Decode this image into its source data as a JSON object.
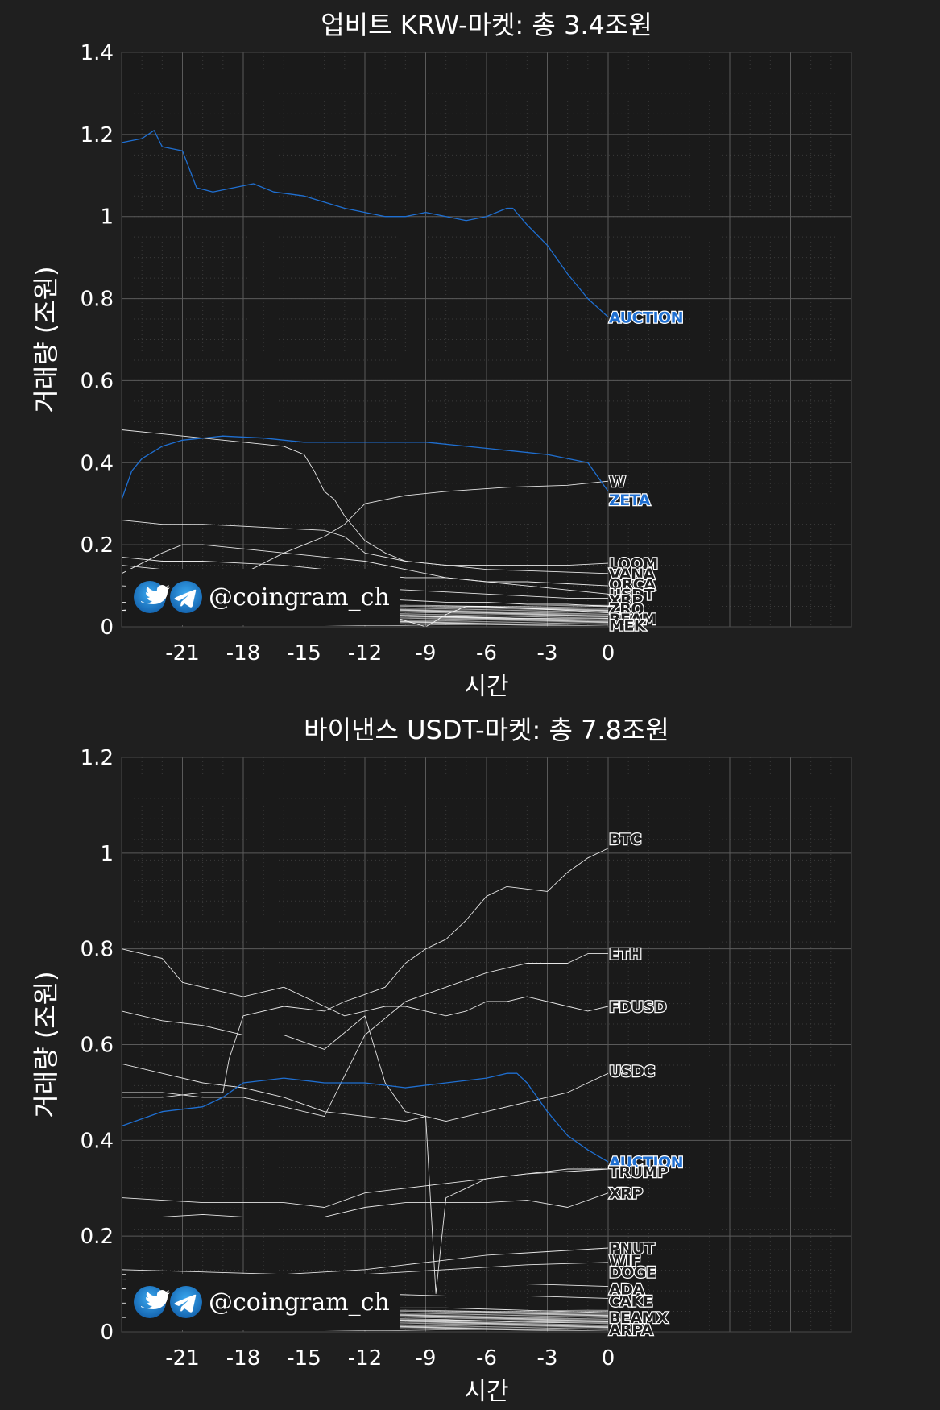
{
  "watermark": {
    "handle": "@coingram_ch",
    "icons": [
      "twitter-icon",
      "telegram-icon"
    ]
  },
  "colors": {
    "background": "#1f1f1f",
    "plot_bg": "#1a1a1a",
    "highlight": "#1f6fd1",
    "line": "#e6e6e6",
    "grid": "#5a5a5a"
  },
  "chart_data": [
    {
      "type": "line",
      "title": "업비트 KRW-마켓: 총 3.4조원",
      "xlabel": "시간",
      "ylabel": "거래량 (조원)",
      "xlim": [
        -24,
        12
      ],
      "ylim": [
        0,
        1.4
      ],
      "xticks": [
        -21,
        -18,
        -15,
        -12,
        -9,
        -6,
        -3,
        0
      ],
      "xtick_labels": [
        "-21",
        "-18",
        "-15",
        "-12",
        "-9",
        "-6",
        "-3",
        "0"
      ],
      "yticks": [
        0,
        0.2,
        0.4,
        0.6,
        0.8,
        1,
        1.2,
        1.4
      ],
      "ytick_labels": [
        "0",
        "0.2",
        "0.4",
        "0.6",
        "0.8",
        "1",
        "1.2",
        "1.4"
      ],
      "grid": true,
      "series": [
        {
          "name": "AUCTION",
          "highlight": true,
          "x": [
            -24,
            -23,
            -22.4,
            -22,
            -21,
            -20.3,
            -19.5,
            -18.5,
            -17.5,
            -16.5,
            -15,
            -13,
            -11,
            -10,
            -9,
            -8,
            -7,
            -6,
            -5,
            -4.7,
            -4,
            -3,
            -2,
            -1,
            0
          ],
          "y": [
            1.18,
            1.19,
            1.21,
            1.17,
            1.16,
            1.07,
            1.06,
            1.07,
            1.08,
            1.06,
            1.05,
            1.02,
            1.0,
            1.0,
            1.01,
            1.0,
            0.99,
            1.0,
            1.02,
            1.02,
            0.98,
            0.93,
            0.86,
            0.8,
            0.755
          ]
        },
        {
          "name": "W",
          "x": [
            -24,
            -20,
            -18,
            -16,
            -14,
            -13,
            -12,
            -11,
            -10,
            -8,
            -5,
            -2,
            0
          ],
          "y": [
            0.04,
            0.06,
            0.13,
            0.18,
            0.22,
            0.25,
            0.3,
            0.31,
            0.32,
            0.33,
            0.34,
            0.345,
            0.355
          ]
        },
        {
          "name": "ZETA",
          "highlight": true,
          "x": [
            -24,
            -23.5,
            -23,
            -22,
            -21,
            -19,
            -17,
            -15,
            -13,
            -11,
            -9,
            -7,
            -5,
            -3,
            -1,
            0
          ],
          "y": [
            0.31,
            0.38,
            0.41,
            0.44,
            0.455,
            0.465,
            0.46,
            0.45,
            0.45,
            0.45,
            0.45,
            0.44,
            0.43,
            0.42,
            0.4,
            0.33
          ]
        },
        {
          "name": "LOOM",
          "x": [
            -24,
            -22,
            -20,
            -18,
            -16,
            -15,
            -14.5,
            -14,
            -13.5,
            -13,
            -12,
            -11,
            -10,
            -8,
            -6,
            -4,
            -2,
            0
          ],
          "y": [
            0.48,
            0.47,
            0.46,
            0.45,
            0.44,
            0.42,
            0.38,
            0.33,
            0.31,
            0.27,
            0.21,
            0.18,
            0.16,
            0.15,
            0.15,
            0.15,
            0.15,
            0.155
          ]
        },
        {
          "name": "VANA",
          "x": [
            -24,
            -22,
            -20,
            -18,
            -16,
            -14,
            -13,
            -12,
            -10,
            -8,
            -6,
            -3,
            0
          ],
          "y": [
            0.26,
            0.25,
            0.25,
            0.245,
            0.24,
            0.235,
            0.22,
            0.18,
            0.16,
            0.15,
            0.14,
            0.135,
            0.13
          ]
        },
        {
          "name": "ORCA",
          "x": [
            -24,
            -22,
            -20,
            -18,
            -16,
            -14,
            -12,
            -10,
            -8,
            -6,
            -4,
            -2,
            0
          ],
          "y": [
            0.17,
            0.16,
            0.16,
            0.155,
            0.15,
            0.14,
            0.13,
            0.12,
            0.12,
            0.11,
            0.11,
            0.105,
            0.1
          ]
        },
        {
          "name": "USDT",
          "x": [
            -24,
            -22,
            -21,
            -20,
            -18,
            -16,
            -14,
            -12,
            -10,
            -8,
            -6,
            -4,
            -2,
            0
          ],
          "y": [
            0.13,
            0.18,
            0.2,
            0.2,
            0.19,
            0.18,
            0.17,
            0.16,
            0.14,
            0.12,
            0.11,
            0.1,
            0.09,
            0.08
          ]
        },
        {
          "name": "XRP",
          "x": [
            -24,
            -22,
            -20,
            -18,
            -16,
            -14,
            -12,
            -10,
            -8,
            -6,
            -4,
            -2,
            0
          ],
          "y": [
            0.15,
            0.14,
            0.13,
            0.12,
            0.11,
            0.1,
            0.095,
            0.09,
            0.085,
            0.08,
            0.075,
            0.07,
            0.07
          ]
        },
        {
          "name": "ZRO",
          "x": [
            -24,
            -22,
            -20,
            -18,
            -16,
            -14,
            -12,
            -10,
            -8,
            -6,
            -4,
            -2,
            0
          ],
          "y": [
            0.1,
            0.095,
            0.09,
            0.085,
            0.08,
            0.075,
            0.07,
            0.065,
            0.06,
            0.06,
            0.055,
            0.055,
            0.05
          ]
        },
        {
          "name": "BEAM",
          "x": [
            -24,
            -20,
            -16,
            -12,
            -9,
            -8,
            -7,
            -6,
            -4,
            -2,
            0
          ],
          "y": [
            0.06,
            0.055,
            0.05,
            0.045,
            0.0,
            0.03,
            0.05,
            0.05,
            0.045,
            0.04,
            0.035
          ]
        },
        {
          "name": "MEK",
          "x": [
            -24,
            -20,
            -16,
            -12,
            -8,
            -4,
            0
          ],
          "y": [
            0.04,
            0.035,
            0.03,
            0.03,
            0.025,
            0.02,
            0.02
          ]
        }
      ],
      "labels": [
        {
          "text": "AUCTION",
          "y": 0.755,
          "highlight": true
        },
        {
          "text": "W",
          "y": 0.355
        },
        {
          "text": "ZETA",
          "y": 0.31,
          "highlight": true
        },
        {
          "text": "LOOM",
          "y": 0.155
        },
        {
          "text": "VANA",
          "y": 0.13
        },
        {
          "text": "ORCA",
          "y": 0.105
        },
        {
          "text": "USDT",
          "y": 0.08
        },
        {
          "text": "XRP",
          "y": 0.065
        },
        {
          "text": "ZRO",
          "y": 0.045
        },
        {
          "text": "BEAM",
          "y": 0.02
        },
        {
          "text": "MEK",
          "y": 0.005
        }
      ]
    },
    {
      "type": "line",
      "title": "바이낸스 USDT-마켓: 총 7.8조원",
      "xlabel": "시간",
      "ylabel": "거래량 (조원)",
      "xlim": [
        -24,
        12
      ],
      "ylim": [
        0,
        1.2
      ],
      "xticks": [
        -21,
        -18,
        -15,
        -12,
        -9,
        -6,
        -3,
        0
      ],
      "xtick_labels": [
        "-21",
        "-18",
        "-15",
        "-12",
        "-9",
        "-6",
        "-3",
        "0"
      ],
      "yticks": [
        0,
        0.2,
        0.4,
        0.6,
        0.8,
        1,
        1.2
      ],
      "ytick_labels": [
        "0",
        "0.2",
        "0.4",
        "0.6",
        "0.8",
        "1",
        "1.2"
      ],
      "grid": true,
      "series": [
        {
          "name": "BTC",
          "x": [
            -24,
            -22,
            -20,
            -19,
            -18.7,
            -18,
            -16,
            -14,
            -13,
            -12.3,
            -11,
            -10,
            -9,
            -8,
            -7,
            -6,
            -5,
            -3,
            -2,
            -1,
            0
          ],
          "y": [
            0.49,
            0.49,
            0.5,
            0.5,
            0.57,
            0.66,
            0.68,
            0.67,
            0.69,
            0.7,
            0.72,
            0.77,
            0.8,
            0.82,
            0.86,
            0.91,
            0.93,
            0.92,
            0.96,
            0.99,
            1.01
          ]
        },
        {
          "name": "ETH",
          "x": [
            -24,
            -22,
            -20,
            -18,
            -16,
            -14,
            -12,
            -10,
            -8,
            -6,
            -4,
            -2,
            -1,
            0
          ],
          "y": [
            0.5,
            0.5,
            0.49,
            0.49,
            0.47,
            0.45,
            0.62,
            0.69,
            0.72,
            0.75,
            0.77,
            0.77,
            0.79,
            0.79
          ]
        },
        {
          "name": "FDUSD",
          "x": [
            -24,
            -23,
            -22,
            -21,
            -20,
            -19,
            -18,
            -17,
            -16,
            -15,
            -14,
            -13,
            -12,
            -11,
            -10,
            -9,
            -8,
            -7,
            -6,
            -5,
            -4,
            -3,
            -2,
            -1,
            0
          ],
          "y": [
            0.8,
            0.79,
            0.78,
            0.73,
            0.72,
            0.71,
            0.7,
            0.71,
            0.72,
            0.7,
            0.68,
            0.66,
            0.67,
            0.68,
            0.68,
            0.67,
            0.66,
            0.67,
            0.69,
            0.69,
            0.7,
            0.69,
            0.68,
            0.67,
            0.68
          ]
        },
        {
          "name": "USDC",
          "x": [
            -24,
            -22,
            -20,
            -18,
            -16,
            -14,
            -12,
            -11,
            -10,
            -9,
            -8,
            -6,
            -4,
            -2,
            -1,
            0
          ],
          "y": [
            0.67,
            0.65,
            0.64,
            0.62,
            0.62,
            0.59,
            0.66,
            0.52,
            0.46,
            0.45,
            0.44,
            0.46,
            0.48,
            0.5,
            0.52,
            0.54
          ]
        },
        {
          "name": "AUCTION",
          "highlight": true,
          "x": [
            -24,
            -22,
            -20,
            -19,
            -18,
            -16,
            -14,
            -12,
            -10,
            -8,
            -6,
            -5,
            -4.5,
            -4,
            -3,
            -2,
            -1,
            0
          ],
          "y": [
            0.43,
            0.46,
            0.47,
            0.49,
            0.52,
            0.53,
            0.52,
            0.52,
            0.51,
            0.52,
            0.53,
            0.54,
            0.54,
            0.52,
            0.46,
            0.41,
            0.38,
            0.355
          ]
        },
        {
          "name": "TRUMP",
          "x": [
            -24,
            -22,
            -20,
            -18,
            -16,
            -14,
            -12,
            -10,
            -9,
            -8.5,
            -8,
            -7,
            -6,
            -4,
            -2,
            0
          ],
          "y": [
            0.56,
            0.54,
            0.52,
            0.51,
            0.49,
            0.46,
            0.45,
            0.44,
            0.45,
            0.08,
            0.28,
            0.3,
            0.32,
            0.33,
            0.335,
            0.34
          ]
        },
        {
          "name": "XRP",
          "x": [
            -24,
            -22,
            -20,
            -18,
            -16,
            -14,
            -12,
            -10,
            -8,
            -6,
            -4,
            -2,
            0
          ],
          "y": [
            0.28,
            0.275,
            0.27,
            0.27,
            0.27,
            0.26,
            0.29,
            0.3,
            0.31,
            0.32,
            0.33,
            0.34,
            0.34
          ]
        },
        {
          "name": "PNUT",
          "x": [
            -24,
            -22,
            -20,
            -18,
            -16,
            -14,
            -12,
            -10,
            -8,
            -6,
            -4,
            -2,
            0
          ],
          "y": [
            0.24,
            0.24,
            0.245,
            0.24,
            0.24,
            0.24,
            0.26,
            0.27,
            0.27,
            0.27,
            0.275,
            0.26,
            0.29
          ]
        },
        {
          "name": "WIF",
          "x": [
            -24,
            -20,
            -16,
            -12,
            -10,
            -8,
            -6,
            -4,
            -2,
            0
          ],
          "y": [
            0.12,
            0.12,
            0.12,
            0.13,
            0.14,
            0.15,
            0.16,
            0.165,
            0.17,
            0.175
          ]
        },
        {
          "name": "DOGE",
          "x": [
            -24,
            -20,
            -16,
            -12,
            -8,
            -4,
            0
          ],
          "y": [
            0.13,
            0.125,
            0.12,
            0.12,
            0.13,
            0.14,
            0.145
          ]
        },
        {
          "name": "ADA",
          "x": [
            -24,
            -20,
            -16,
            -12,
            -8,
            -4,
            0
          ],
          "y": [
            0.11,
            0.105,
            0.1,
            0.1,
            0.1,
            0.1,
            0.095
          ]
        },
        {
          "name": "CAKE",
          "x": [
            -24,
            -20,
            -16,
            -12,
            -8,
            -4,
            0
          ],
          "y": [
            0.09,
            0.085,
            0.08,
            0.08,
            0.075,
            0.075,
            0.07
          ]
        },
        {
          "name": "BEAMX",
          "x": [
            -24,
            -20,
            -16,
            -12,
            -8,
            -4,
            0
          ],
          "y": [
            0.06,
            0.06,
            0.055,
            0.05,
            0.05,
            0.045,
            0.04
          ]
        },
        {
          "name": "ARPA",
          "x": [
            -24,
            -20,
            -16,
            -12,
            -8,
            -4,
            0
          ],
          "y": [
            0.03,
            0.03,
            0.03,
            0.025,
            0.025,
            0.02,
            0.02
          ]
        }
      ],
      "labels": [
        {
          "text": "BTC",
          "y": 1.03
        },
        {
          "text": "ETH",
          "y": 0.79
        },
        {
          "text": "FDUSD",
          "y": 0.68
        },
        {
          "text": "USDC",
          "y": 0.545
        },
        {
          "text": "AUCTION",
          "y": 0.355,
          "highlight": true
        },
        {
          "text": "TRUMP",
          "y": 0.335
        },
        {
          "text": "XRP",
          "y": 0.29
        },
        {
          "text": "PNUT",
          "y": 0.175
        },
        {
          "text": "WIF",
          "y": 0.15
        },
        {
          "text": "DOGE",
          "y": 0.125
        },
        {
          "text": "ADA",
          "y": 0.09
        },
        {
          "text": "CAKE",
          "y": 0.065
        },
        {
          "text": "BEAMX",
          "y": 0.03
        },
        {
          "text": "ARPA",
          "y": 0.005
        }
      ]
    }
  ]
}
